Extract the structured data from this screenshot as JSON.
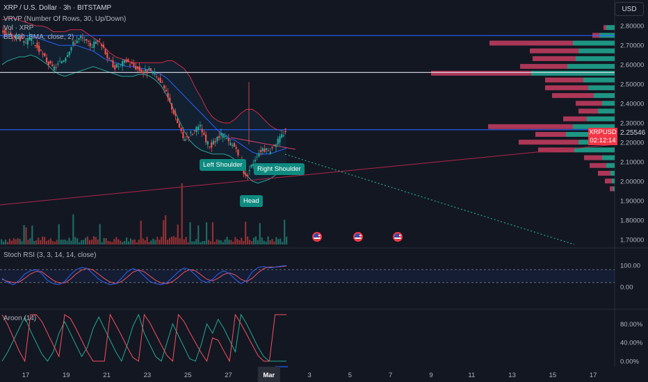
{
  "header": {
    "symbol_line": "XRP / U.S. Dollar · 3h · BITSTAMP",
    "vrvp": "VRVP (Number Of Rows, 30, Up/Down)",
    "vol": "Vol · XRP",
    "bb": "BB (20, SMA, close, 2)"
  },
  "currency_button": "USD",
  "colors": {
    "background": "#131722",
    "up": "#26a69a",
    "down": "#ef5350",
    "blue_line": "#2962ff",
    "trend_red": "#b2264a",
    "dotted_teal": "#22ab94",
    "bb_band": "#d12d48",
    "bb_mid": "#2962ff",
    "rsi_k": "#2962ff",
    "rsi_d": "#f7525f",
    "aroon_up": "#f7525f",
    "aroon_down": "#22ab94"
  },
  "chart_data": {
    "type": "candlestick",
    "price_axis": {
      "ticks": [
        "2.80000",
        "2.70000",
        "2.60000",
        "2.50000",
        "2.40000",
        "2.30000",
        "2.20000",
        "2.10000",
        "2.00000",
        "1.90000",
        "1.80000",
        "1.70000"
      ],
      "range": [
        1.66,
        2.84
      ]
    },
    "time_axis": {
      "ticks": [
        "17",
        "19",
        "21",
        "23",
        "25",
        "27",
        "Mar",
        "3",
        "5",
        "7",
        "9",
        "11",
        "13",
        "15",
        "17"
      ]
    },
    "current_price": {
      "symbol": "XRPUSD",
      "price": "2.25546",
      "countdown": "02:12:14"
    },
    "horizontal_lines": [
      {
        "price": 2.75,
        "color": "blue"
      },
      {
        "price": 2.56,
        "color": "white"
      },
      {
        "price": 2.265,
        "color": "blue"
      }
    ],
    "close_series": [
      2.78,
      2.76,
      2.74,
      2.75,
      2.71,
      2.73,
      2.7,
      2.66,
      2.62,
      2.58,
      2.6,
      2.63,
      2.68,
      2.72,
      2.74,
      2.71,
      2.7,
      2.73,
      2.69,
      2.62,
      2.59,
      2.6,
      2.62,
      2.6,
      2.58,
      2.56,
      2.57,
      2.55,
      2.52,
      2.45,
      2.38,
      2.3,
      2.22,
      2.24,
      2.26,
      2.28,
      2.2,
      2.18,
      2.22,
      2.24,
      2.2,
      2.18,
      2.1,
      2.02,
      2.08,
      2.14,
      2.17,
      2.15,
      2.19,
      2.22,
      2.26
    ],
    "bollinger_bands": {
      "upper": [
        2.83,
        2.84,
        2.84,
        2.83,
        2.82,
        2.81,
        2.8,
        2.8,
        2.79,
        2.77,
        2.77,
        2.77,
        2.78,
        2.78,
        2.78,
        2.76,
        2.74,
        2.72,
        2.69,
        2.66,
        2.64,
        2.63,
        2.62,
        2.61,
        2.61,
        2.61,
        2.61,
        2.61,
        2.61,
        2.62,
        2.62,
        2.6,
        2.58,
        2.54,
        2.48,
        2.43,
        2.37,
        2.33,
        2.31,
        2.3,
        2.3,
        2.32,
        2.35,
        2.37,
        2.37,
        2.35,
        2.32,
        2.29,
        2.27,
        2.26,
        2.27
      ],
      "middle": [
        2.74,
        2.75,
        2.75,
        2.75,
        2.75,
        2.75,
        2.74,
        2.73,
        2.72,
        2.71,
        2.7,
        2.7,
        2.7,
        2.7,
        2.69,
        2.68,
        2.67,
        2.65,
        2.63,
        2.62,
        2.61,
        2.6,
        2.59,
        2.59,
        2.58,
        2.58,
        2.57,
        2.56,
        2.55,
        2.53,
        2.5,
        2.47,
        2.44,
        2.41,
        2.38,
        2.35,
        2.32,
        2.29,
        2.26,
        2.24,
        2.22,
        2.21,
        2.19,
        2.17,
        2.15,
        2.14,
        2.14,
        2.14,
        2.15,
        2.16,
        2.17
      ],
      "lower": [
        2.6,
        2.62,
        2.63,
        2.64,
        2.64,
        2.65,
        2.64,
        2.62,
        2.6,
        2.57,
        2.55,
        2.54,
        2.55,
        2.56,
        2.57,
        2.58,
        2.59,
        2.58,
        2.57,
        2.56,
        2.55,
        2.54,
        2.54,
        2.54,
        2.55,
        2.55,
        2.54,
        2.52,
        2.49,
        2.44,
        2.38,
        2.32,
        2.26,
        2.21,
        2.18,
        2.16,
        2.15,
        2.14,
        2.14,
        2.14,
        2.13,
        2.11,
        2.07,
        2.03,
        2.0,
        1.99,
        2.0,
        2.01,
        2.03,
        2.05,
        2.06
      ]
    },
    "volume_profile": [
      {
        "price": 2.79,
        "up": 12,
        "down": 4
      },
      {
        "price": 2.75,
        "up": 22,
        "down": 10
      },
      {
        "price": 2.71,
        "up": 60,
        "down": 120
      },
      {
        "price": 2.67,
        "up": 52,
        "down": 70
      },
      {
        "price": 2.63,
        "up": 56,
        "down": 62
      },
      {
        "price": 2.59,
        "up": 68,
        "down": 68
      },
      {
        "price": 2.555,
        "up": 120,
        "down": 144
      },
      {
        "price": 2.52,
        "up": 45,
        "down": 55
      },
      {
        "price": 2.48,
        "up": 38,
        "down": 62
      },
      {
        "price": 2.44,
        "up": 30,
        "down": 60
      },
      {
        "price": 2.4,
        "up": 18,
        "down": 38
      },
      {
        "price": 2.36,
        "up": 24,
        "down": 28
      },
      {
        "price": 2.32,
        "up": 40,
        "down": 34
      },
      {
        "price": 2.28,
        "up": 60,
        "down": 122
      },
      {
        "price": 2.24,
        "up": 70,
        "down": 44
      },
      {
        "price": 2.2,
        "up": 52,
        "down": 86
      },
      {
        "price": 2.16,
        "up": 58,
        "down": 52
      },
      {
        "price": 2.12,
        "up": 18,
        "down": 26
      },
      {
        "price": 2.08,
        "up": 12,
        "down": 24
      },
      {
        "price": 2.04,
        "up": 6,
        "down": 18
      },
      {
        "price": 2.0,
        "up": 4,
        "down": 10
      },
      {
        "price": 1.96,
        "up": 2,
        "down": 5
      }
    ],
    "annotations": [
      "Left Shoulder",
      "Head",
      "Right Shoulder"
    ],
    "volume_pane": {
      "label": "Vol · XRP"
    }
  },
  "stoch_rsi": {
    "label": "Stoch RSI (3, 3, 14, 14, close)",
    "ticks": [
      "100.00",
      "0.00"
    ],
    "k": [
      40,
      20,
      10,
      30,
      60,
      75,
      80,
      60,
      30,
      15,
      10,
      25,
      55,
      80,
      90,
      85,
      60,
      35,
      20,
      10,
      15,
      40,
      70,
      85,
      75,
      50,
      25,
      15,
      10,
      20,
      45,
      70,
      88,
      80,
      55,
      30,
      20,
      35,
      60,
      75,
      60,
      35,
      15,
      30,
      70,
      90,
      95,
      88,
      92,
      96,
      99
    ],
    "d": [
      35,
      25,
      20,
      22,
      40,
      60,
      72,
      70,
      50,
      30,
      18,
      18,
      35,
      60,
      78,
      85,
      78,
      58,
      38,
      22,
      15,
      25,
      45,
      68,
      78,
      70,
      50,
      30,
      18,
      15,
      25,
      45,
      68,
      80,
      75,
      55,
      35,
      28,
      40,
      58,
      65,
      55,
      35,
      25,
      40,
      65,
      85,
      92,
      92,
      94,
      97
    ]
  },
  "aroon": {
    "label": "Aroon (14)",
    "ticks": [
      "80.00%",
      "40.00%",
      "0.00%"
    ],
    "up": [
      100,
      78,
      50,
      22,
      0,
      100,
      100,
      85,
      60,
      35,
      10,
      100,
      92,
      70,
      45,
      20,
      0,
      0,
      0,
      100,
      78,
      55,
      30,
      8,
      0,
      100,
      82,
      58,
      35,
      12,
      0,
      100,
      85,
      62,
      40,
      18,
      0,
      50,
      45,
      22,
      0,
      100,
      80,
      58,
      35,
      12,
      0,
      0,
      100,
      100,
      100
    ],
    "down": [
      0,
      20,
      45,
      70,
      95,
      65,
      40,
      15,
      0,
      20,
      60,
      85,
      60,
      35,
      10,
      30,
      70,
      95,
      70,
      45,
      20,
      0,
      35,
      75,
      100,
      60,
      35,
      10,
      0,
      40,
      80,
      55,
      30,
      5,
      0,
      35,
      80,
      60,
      90,
      70,
      45,
      20,
      100,
      80,
      55,
      30,
      10,
      0,
      0,
      0,
      0
    ]
  }
}
